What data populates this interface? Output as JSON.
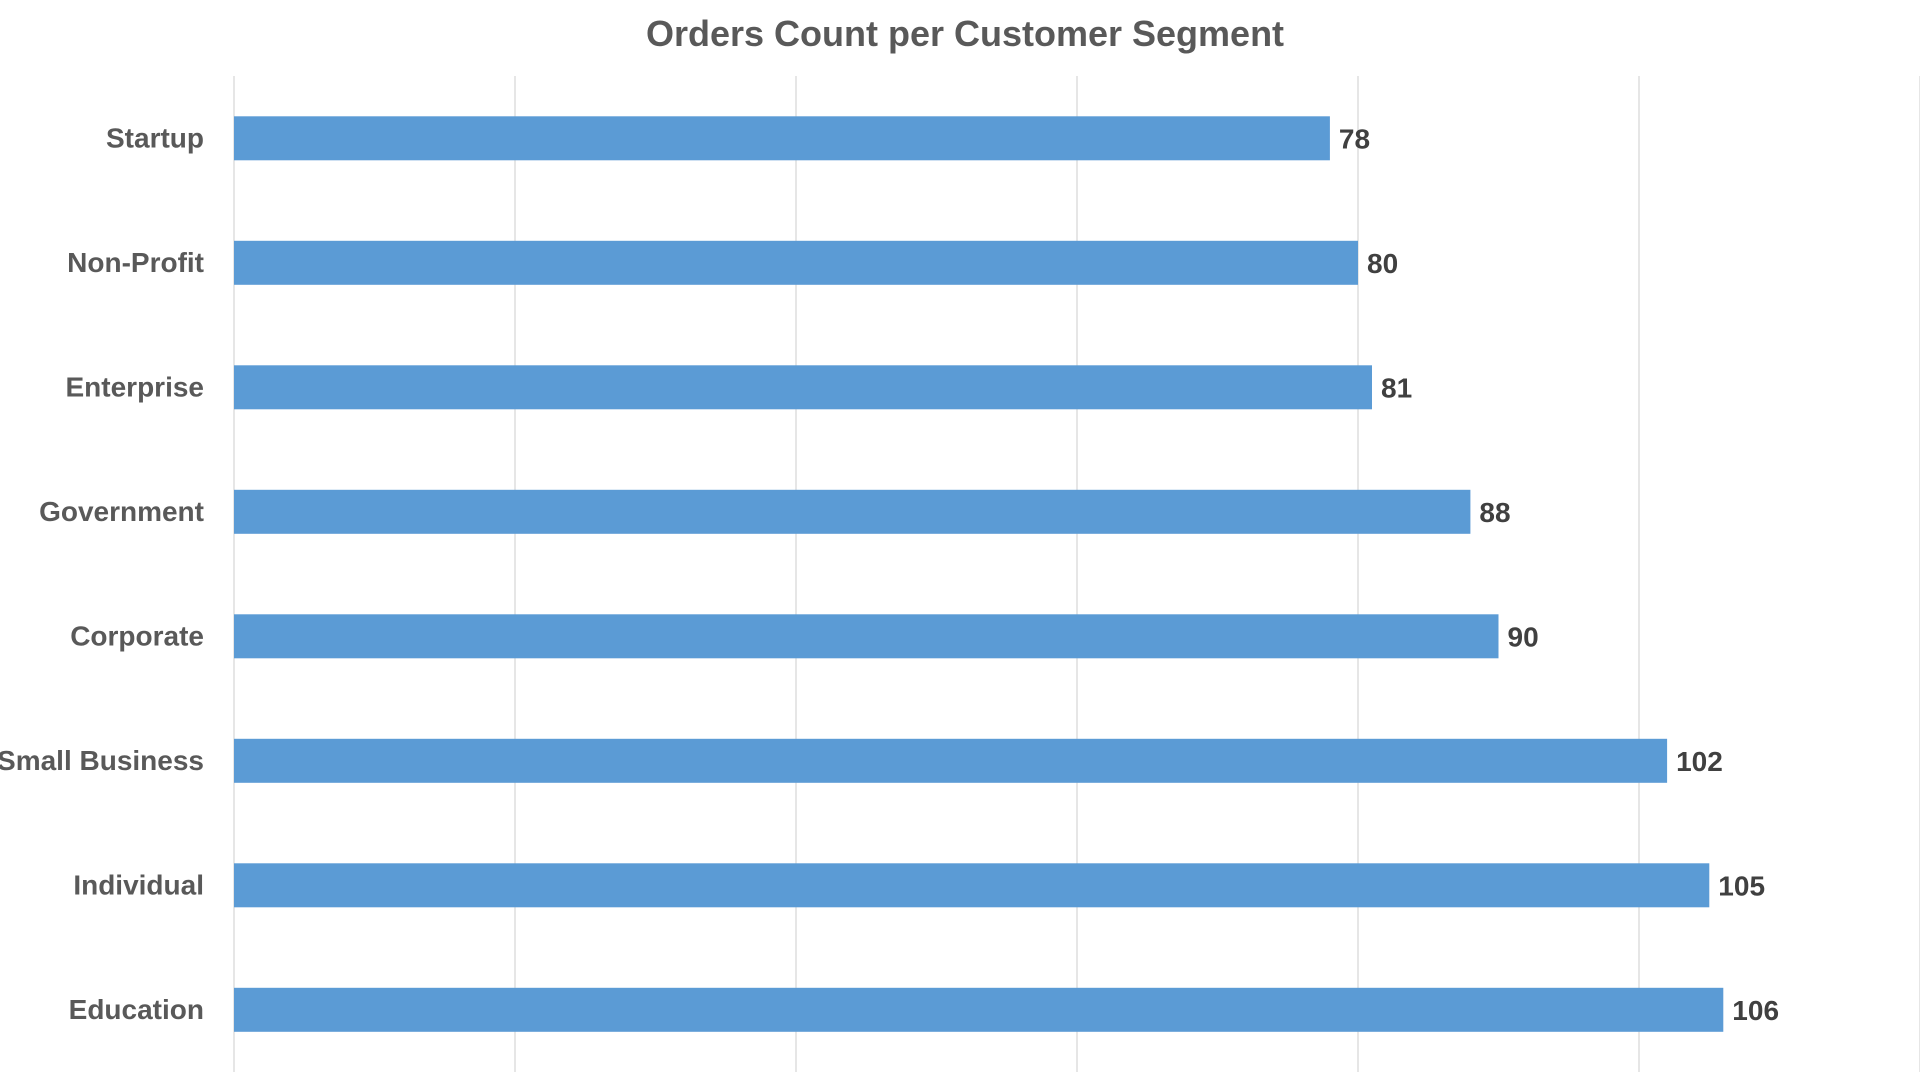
{
  "chart_data": {
    "type": "bar",
    "orientation": "horizontal",
    "title": "Orders Count per Customer Segment",
    "xlabel": "",
    "ylabel": "",
    "categories": [
      "Startup",
      "Non-Profit",
      "Enterprise",
      "Government",
      "Corporate",
      "Small Business",
      "Individual",
      "Education"
    ],
    "values": [
      78,
      80,
      81,
      88,
      90,
      102,
      105,
      106
    ],
    "xlim": [
      0,
      120
    ],
    "major_unit": 20,
    "show_tick_labels": false,
    "grid": true,
    "legend": "none",
    "data_labels": true,
    "colors": {
      "bar": "#5B9BD5",
      "grid": "#D9D9D9",
      "title": "#595959",
      "category_text": "#595959",
      "data_label_text": "#404040"
    }
  }
}
